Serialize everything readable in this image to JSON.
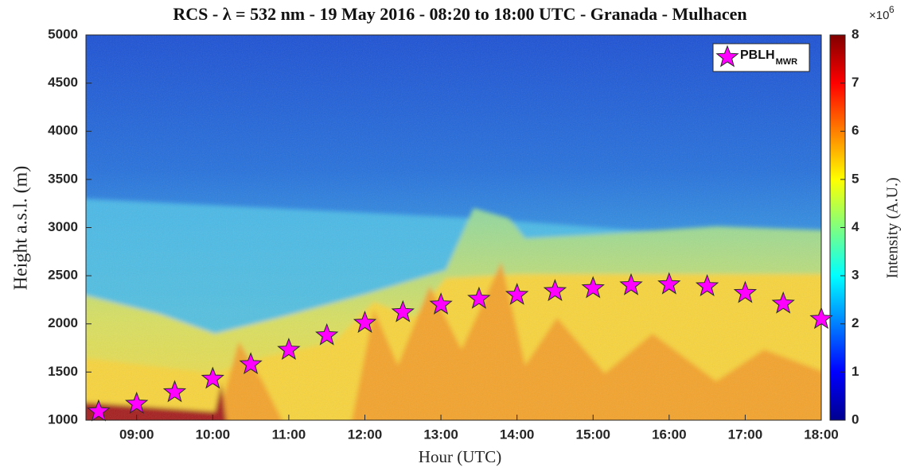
{
  "chart_data": {
    "type": "scatter",
    "title": "RCS - λ = 532 nm - 19 May 2016 - 08:20 to 18:00 UTC - Granada - Mulhacen",
    "x_label": "Hour (UTC)",
    "y_label": "Height a.s.l. (m)",
    "xlim": [
      8.3333,
      18
    ],
    "xticks": [
      {
        "value": 9,
        "label": "09:00"
      },
      {
        "value": 10,
        "label": "10:00"
      },
      {
        "value": 11,
        "label": "11:00"
      },
      {
        "value": 12,
        "label": "12:00"
      },
      {
        "value": 13,
        "label": "13:00"
      },
      {
        "value": 14,
        "label": "14:00"
      },
      {
        "value": 15,
        "label": "15:00"
      },
      {
        "value": 16,
        "label": "16:00"
      },
      {
        "value": 17,
        "label": "17:00"
      },
      {
        "value": 18,
        "label": "18:00"
      }
    ],
    "ylim": [
      1000,
      5000
    ],
    "yticks": [
      1000,
      1500,
      2000,
      2500,
      3000,
      3500,
      4000,
      4500,
      5000
    ],
    "legend": "top-right",
    "series": [
      {
        "name": "PBLH",
        "name_sub": "MWR",
        "color": "#ff00ff",
        "x": [
          8.5,
          9,
          9.5,
          10,
          10.5,
          11,
          11.5,
          12,
          12.5,
          13,
          13.5,
          14,
          14.5,
          15,
          15.5,
          16,
          16.5,
          17,
          17.5,
          18
        ],
        "values": [
          1090,
          1170,
          1290,
          1430,
          1580,
          1730,
          1880,
          2010,
          2120,
          2200,
          2260,
          2300,
          2340,
          2370,
          2400,
          2410,
          2390,
          2320,
          2210,
          2050
        ]
      }
    ],
    "colorbar": {
      "label": "Intensity (A.U.)",
      "multiplier": "×10",
      "multiplier_power": "6",
      "lim": [
        0,
        8
      ],
      "ticks": [
        0,
        1,
        2,
        3,
        4,
        5,
        6,
        7,
        8
      ]
    }
  }
}
